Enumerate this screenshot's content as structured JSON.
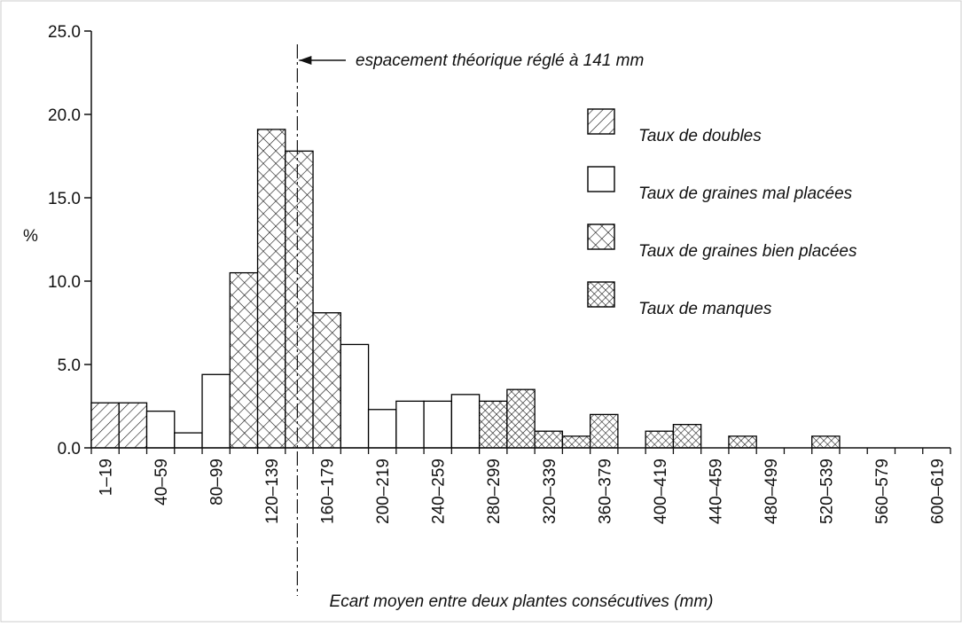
{
  "chart_data": {
    "type": "bar",
    "stacked": true,
    "y_label": "%",
    "x_label": "Ecart moyen entre deux plantes consécutives (mm)",
    "annotation": {
      "text": "espacement théorique réglé à 141 mm",
      "x_mm": 141,
      "xlim_mm": [
        0,
        620
      ]
    },
    "categories": [
      "1–19",
      null,
      "40–59",
      null,
      "80–99",
      null,
      "120–139",
      null,
      "160–179",
      null,
      "200–219",
      null,
      "240–259",
      null,
      "280–299",
      null,
      "320–339",
      null,
      "360–379",
      null,
      "400–419",
      null,
      "440–459",
      null,
      "480–499",
      null,
      "520–539",
      null,
      "560–579",
      null,
      "600–619"
    ],
    "series": [
      {
        "name": "Taux de doubles",
        "color": "#000000",
        "pattern": "hatch",
        "values": [
          2.7,
          2.7,
          0,
          0,
          0,
          0,
          0,
          0,
          0,
          0,
          0,
          0,
          0,
          0,
          0,
          0,
          0,
          0,
          0,
          0,
          0,
          0,
          0,
          0,
          0,
          0,
          0,
          0,
          0,
          0,
          0
        ]
      },
      {
        "name": "Taux de graines mal placées",
        "color": "#000000",
        "pattern": "none",
        "values": [
          0,
          0,
          2.2,
          0.9,
          4.4,
          0,
          0,
          0,
          0,
          6.2,
          2.3,
          2.8,
          2.8,
          3.2,
          0,
          0,
          0,
          0,
          0,
          0,
          0,
          0,
          0,
          0,
          0,
          0,
          0,
          0,
          0,
          0,
          0
        ]
      },
      {
        "name": "Taux de graines bien placées",
        "color": "#000000",
        "pattern": "cross",
        "values": [
          0,
          0,
          0,
          0,
          0,
          10.5,
          19.1,
          17.8,
          8.1,
          0,
          0,
          0,
          0,
          0,
          0,
          0,
          0,
          0,
          0,
          0,
          0,
          0,
          0,
          0,
          0,
          0,
          0,
          0,
          0,
          0,
          0
        ]
      },
      {
        "name": "Taux de manques",
        "color": "#000000",
        "pattern": "dense-cross",
        "values": [
          0,
          0,
          0,
          0,
          0,
          0,
          0,
          0,
          0,
          0,
          0,
          0,
          0,
          0,
          2.8,
          3.5,
          1.0,
          0.7,
          2.0,
          0,
          1.0,
          1.4,
          0,
          0.7,
          0,
          0,
          0.7,
          0,
          0,
          0,
          0
        ]
      }
    ],
    "ylim": [
      0,
      25
    ],
    "yticks": [
      {
        "value": 0,
        "label": "0.0"
      },
      {
        "value": 5,
        "label": "5.0"
      },
      {
        "value": 10,
        "label": "10.0"
      },
      {
        "value": 15,
        "label": "15.0"
      },
      {
        "value": 20,
        "label": "20.0"
      },
      {
        "value": 25,
        "label": "25.0"
      }
    ]
  }
}
